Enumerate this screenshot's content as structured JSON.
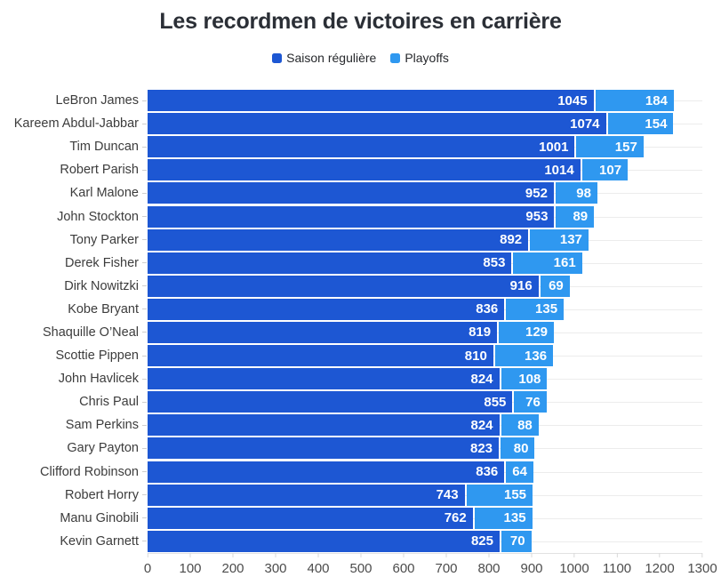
{
  "title": "Les recordmen de victoires en carrière",
  "legend": {
    "items": [
      {
        "label": "Saison régulière",
        "color": "#1d57d3"
      },
      {
        "label": "Playoffs",
        "color": "#2f98f0"
      }
    ]
  },
  "colors": {
    "regular_season": "#1d57d3",
    "playoffs": "#2f98f0",
    "gridline": "#ececec",
    "axis_line": "#e2e2e2",
    "value_text": "#ffffff"
  },
  "chart_data": {
    "type": "bar",
    "orientation": "horizontal",
    "stacked": true,
    "title": "Les recordmen de victoires en carrière",
    "categories": [
      "LeBron James",
      "Kareem Abdul-Jabbar",
      "Tim Duncan",
      "Robert Parish",
      "Karl Malone",
      "John Stockton",
      "Tony Parker",
      "Derek Fisher",
      "Dirk Nowitzki",
      "Kobe Bryant",
      "Shaquille O’Neal",
      "Scottie Pippen",
      "John Havlicek",
      "Chris Paul",
      "Sam Perkins",
      "Gary Payton",
      "Clifford Robinson",
      "Robert Horry",
      "Manu Ginobili",
      "Kevin Garnett"
    ],
    "series": [
      {
        "name": "Saison régulière",
        "color": "#1d57d3",
        "values": [
          1045,
          1074,
          1001,
          1014,
          952,
          953,
          892,
          853,
          916,
          836,
          819,
          810,
          824,
          855,
          824,
          823,
          836,
          743,
          762,
          825
        ]
      },
      {
        "name": "Playoffs",
        "color": "#2f98f0",
        "values": [
          184,
          154,
          157,
          107,
          98,
          89,
          137,
          161,
          69,
          135,
          129,
          136,
          108,
          76,
          88,
          80,
          64,
          155,
          135,
          70
        ]
      }
    ],
    "xlabel": "",
    "ylabel": "",
    "xlim": [
      0,
      1300
    ],
    "xticks": [
      0,
      100,
      200,
      300,
      400,
      500,
      600,
      700,
      800,
      900,
      1000,
      1100,
      1200,
      1300
    ],
    "grid": "horizontal-row-lines",
    "legend_position": "top",
    "value_labels": "inside-end"
  }
}
